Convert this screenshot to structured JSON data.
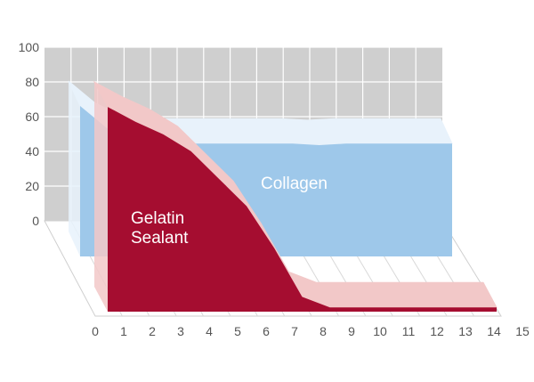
{
  "chart_data": {
    "type": "area",
    "title": "",
    "xlabel": "",
    "ylabel": "",
    "xlim": [
      0,
      15
    ],
    "ylim": [
      0,
      100
    ],
    "x_ticks": [
      "0",
      "1",
      "2",
      "3",
      "4",
      "5",
      "6",
      "7",
      "8",
      "9",
      "10",
      "11",
      "12",
      "13",
      "14",
      "15"
    ],
    "y_ticks": [
      "0",
      "20",
      "40",
      "60",
      "80",
      "100"
    ],
    "grid": true,
    "projection": "3d-stacked-depth",
    "series": [
      {
        "name": "Collagen",
        "color": "#9ec8ea",
        "x": [
          0,
          1,
          2,
          3,
          4,
          5,
          6,
          7,
          8,
          9,
          10,
          11,
          12,
          13,
          14
        ],
        "values": [
          96,
          82,
          74,
          72,
          72,
          72,
          72,
          72,
          72,
          71,
          72,
          72,
          72,
          72,
          72
        ]
      },
      {
        "name": "Gelatin\nSealant",
        "color": "#a50d30",
        "x": [
          0,
          1,
          2,
          3,
          4,
          5,
          6,
          7,
          8,
          9,
          10,
          11,
          12,
          13,
          14
        ],
        "values": [
          97,
          90,
          84,
          76,
          63,
          50,
          30,
          7,
          2,
          2,
          2,
          2,
          2,
          2,
          2
        ]
      }
    ]
  }
}
